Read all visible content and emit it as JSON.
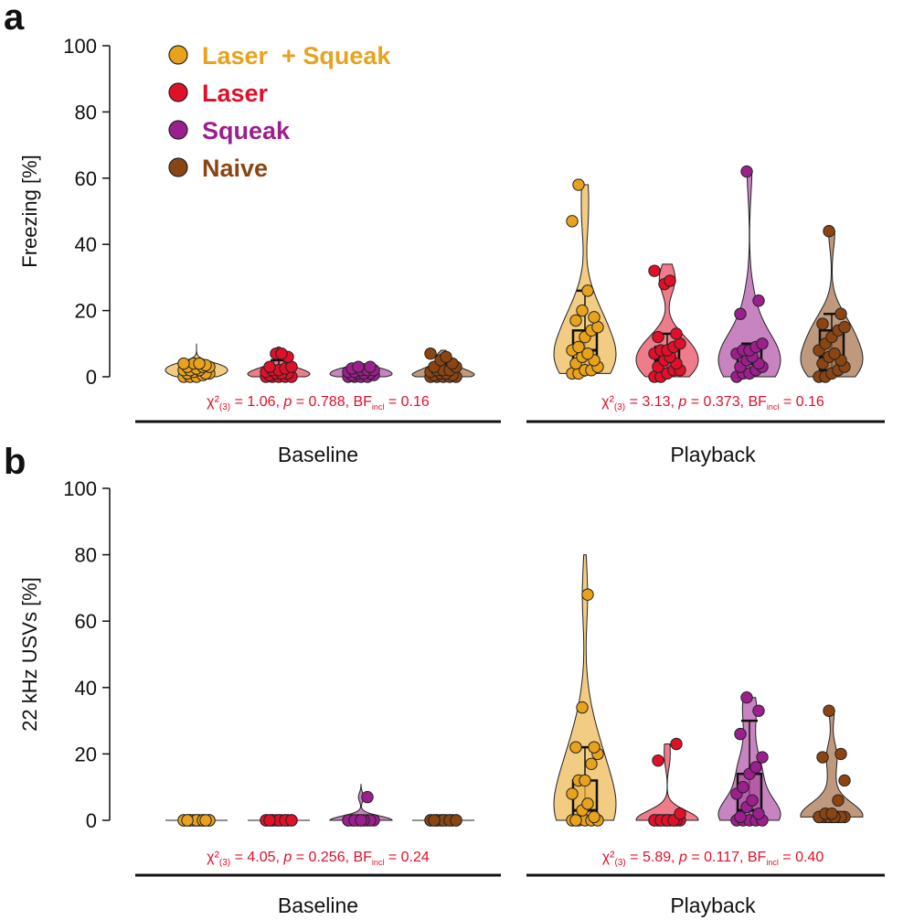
{
  "colors": {
    "Laser  + Squeak": "#e8a21c",
    "Laser": "#e0102a",
    "Squeak": "#9b1f8c",
    "Naive": "#8b4513"
  },
  "chart_data": [
    {
      "panel": "a",
      "type": "violin",
      "ylabel": "Freezing [%]",
      "ylim": [
        0,
        100
      ],
      "yticks": [
        "0",
        "20",
        "40",
        "60",
        "80",
        "100"
      ],
      "legend": [
        "Laser  + Squeak",
        "Laser",
        "Squeak",
        "Naive"
      ],
      "legend_position": "top-left",
      "phases": [
        {
          "label": "Baseline",
          "stat": {
            "chi": "χ²",
            "df": "(3)",
            "chi_val": " = 1.06, ",
            "p": "p",
            "p_val": " = 0.788, BF",
            "bf_sub": "incl",
            "bf_val": " = 0.16"
          },
          "groups": [
            {
              "name": "Laser  + Squeak",
              "violin_max": 10,
              "box": {
                "q1": 0,
                "median": 1,
                "q3": 4,
                "whisker_low": 0,
                "whisker_high": 4
              },
              "points": [
                0,
                0,
                0,
                0.5,
                1,
                1,
                1,
                1.5,
                2,
                2,
                2,
                2.5,
                3,
                3,
                3,
                3.5,
                4,
                4,
                4
              ]
            },
            {
              "name": "Laser",
              "violin_max": 9,
              "box": {
                "q1": 0,
                "median": 0.5,
                "q3": 2,
                "whisker_low": 0,
                "whisker_high": 5
              },
              "points": [
                0,
                0,
                0,
                0,
                0,
                0.5,
                1,
                1,
                1,
                1.5,
                2,
                2,
                2.5,
                3,
                3,
                6,
                7,
                7
              ]
            },
            {
              "name": "Squeak",
              "violin_max": 4,
              "box": {
                "q1": 0,
                "median": 0.5,
                "q3": 1.5,
                "whisker_low": 0,
                "whisker_high": 3
              },
              "points": [
                0,
                0,
                0,
                0,
                0.5,
                0.5,
                1,
                1,
                1,
                1.5,
                1.5,
                2,
                2,
                2,
                2.5,
                3,
                3
              ]
            },
            {
              "name": "Naive",
              "violin_max": 8,
              "box": {
                "q1": 0,
                "median": 0.5,
                "q3": 2,
                "whisker_low": 0,
                "whisker_high": 4
              },
              "points": [
                0,
                0,
                0,
                0,
                0,
                0.5,
                0.5,
                1,
                1,
                1.5,
                2,
                2,
                2,
                3,
                3,
                4,
                5,
                6,
                7
              ]
            }
          ]
        },
        {
          "label": "Playback",
          "stat": {
            "chi": "χ²",
            "df": "(3)",
            "chi_val": " = 3.13, ",
            "p": "p",
            "p_val": " = 0.373, BF",
            "bf_sub": "incl",
            "bf_val": " = 0.16"
          },
          "groups": [
            {
              "name": "Laser  + Squeak",
              "violin_max": 33,
              "box": {
                "q1": 3,
                "median": 8,
                "q3": 14,
                "whisker_low": 0,
                "whisker_high": 26
              },
              "points": [
                1,
                1,
                2,
                2,
                3,
                4,
                5,
                6,
                7,
                8,
                9,
                12,
                14,
                15,
                17,
                18,
                20,
                26,
                47,
                58
              ]
            },
            {
              "name": "Laser",
              "violin_max": 34,
              "box": {
                "q1": 1,
                "median": 5,
                "q3": 9,
                "whisker_low": 0,
                "whisker_high": 13
              },
              "points": [
                0,
                0,
                1,
                2,
                2,
                3,
                4,
                5,
                6,
                7,
                8,
                8,
                9,
                10,
                12,
                13,
                28,
                29,
                32
              ]
            },
            {
              "name": "Squeak",
              "violin_max": 30,
              "box": {
                "q1": 2,
                "median": 4,
                "q3": 8,
                "whisker_low": 0,
                "whisker_high": 10
              },
              "points": [
                0,
                1,
                1,
                2,
                3,
                3,
                4,
                5,
                6,
                7,
                8,
                8,
                9,
                10,
                19,
                23,
                62
              ]
            },
            {
              "name": "Naive",
              "violin_max": 27,
              "box": {
                "q1": 2,
                "median": 6,
                "q3": 14,
                "whisker_low": 0,
                "whisker_high": 19
              },
              "points": [
                0,
                0,
                1,
                2,
                3,
                4,
                5,
                6,
                7,
                8,
                10,
                12,
                14,
                15,
                16,
                19,
                44
              ]
            }
          ]
        }
      ]
    },
    {
      "panel": "b",
      "type": "violin",
      "ylabel": "22 kHz USVs [%]",
      "ylim": [
        0,
        100
      ],
      "yticks": [
        "0",
        "20",
        "40",
        "60",
        "80",
        "100"
      ],
      "phases": [
        {
          "label": "Baseline",
          "stat": {
            "chi": "χ²",
            "df": "(3)",
            "chi_val": " = 4.05, ",
            "p": "p",
            "p_val": " = 0.256, BF",
            "bf_sub": "incl",
            "bf_val": " = 0.24"
          },
          "groups": [
            {
              "name": "Laser  + Squeak",
              "violin_max": 0,
              "box": {
                "q1": 0,
                "median": 0,
                "q3": 0,
                "whisker_low": 0,
                "whisker_high": 0
              },
              "points": [
                0,
                0,
                0,
                0,
                0,
                0,
                0,
                0,
                0,
                0,
                0,
                0,
                0,
                0,
                0,
                0
              ]
            },
            {
              "name": "Laser",
              "violin_max": 0,
              "box": {
                "q1": 0,
                "median": 0,
                "q3": 0,
                "whisker_low": 0,
                "whisker_high": 0
              },
              "points": [
                0,
                0,
                0,
                0,
                0,
                0,
                0,
                0,
                0,
                0,
                0,
                0,
                0,
                0,
                0
              ]
            },
            {
              "name": "Squeak",
              "violin_max": 11,
              "box": {
                "q1": 0,
                "median": 0,
                "q3": 0,
                "whisker_low": 0,
                "whisker_high": 0
              },
              "points": [
                0,
                0,
                0,
                0,
                0,
                0,
                0,
                0,
                0,
                0,
                0,
                0,
                7
              ]
            },
            {
              "name": "Naive",
              "violin_max": 0,
              "box": {
                "q1": 0,
                "median": 0,
                "q3": 0,
                "whisker_low": 0,
                "whisker_high": 0
              },
              "points": [
                0,
                0,
                0,
                0,
                0,
                0,
                0,
                0,
                0,
                0,
                0,
                0,
                0,
                0,
                0
              ]
            }
          ]
        },
        {
          "label": "Playback",
          "stat": {
            "chi": "χ²",
            "df": "(3)",
            "chi_val": " = 5.89, ",
            "p": "p",
            "p_val": " = 0.117, BF",
            "bf_sub": "incl",
            "bf_val": " = 0.40"
          },
          "groups": [
            {
              "name": "Laser  + Squeak",
              "violin_max": 80,
              "box": {
                "q1": 0,
                "median": 3,
                "q3": 12,
                "whisker_low": 0,
                "whisker_high": 22
              },
              "points": [
                0,
                0,
                0,
                0,
                0,
                0,
                1,
                3,
                5,
                8,
                12,
                12,
                17,
                20,
                22,
                22,
                34,
                68
              ]
            },
            {
              "name": "Laser",
              "violin_max": 22,
              "box": {
                "q1": 0,
                "median": 0,
                "q3": 0.5,
                "whisker_low": 0,
                "whisker_high": 0.5
              },
              "points": [
                0,
                0,
                0,
                0,
                0,
                0,
                0,
                0,
                0,
                0,
                0,
                0,
                0,
                2,
                18,
                23
              ]
            },
            {
              "name": "Squeak",
              "violin_max": 30,
              "box": {
                "q1": 0,
                "median": 3,
                "q3": 14,
                "whisker_low": 0,
                "whisker_high": 30
              },
              "points": [
                0,
                0,
                0,
                0,
                0,
                1,
                2,
                4,
                6,
                8,
                10,
                14,
                16,
                19,
                26,
                33,
                37
              ]
            },
            {
              "name": "Naive",
              "violin_max": 33,
              "box": {
                "q1": 1,
                "median": 1,
                "q3": 1.5,
                "whisker_low": 1,
                "whisker_high": 1.5
              },
              "points": [
                1,
                1,
                1,
                1,
                1,
                1,
                1,
                1,
                1,
                1,
                2,
                2,
                6,
                12,
                19,
                20,
                33
              ]
            }
          ]
        }
      ]
    }
  ]
}
